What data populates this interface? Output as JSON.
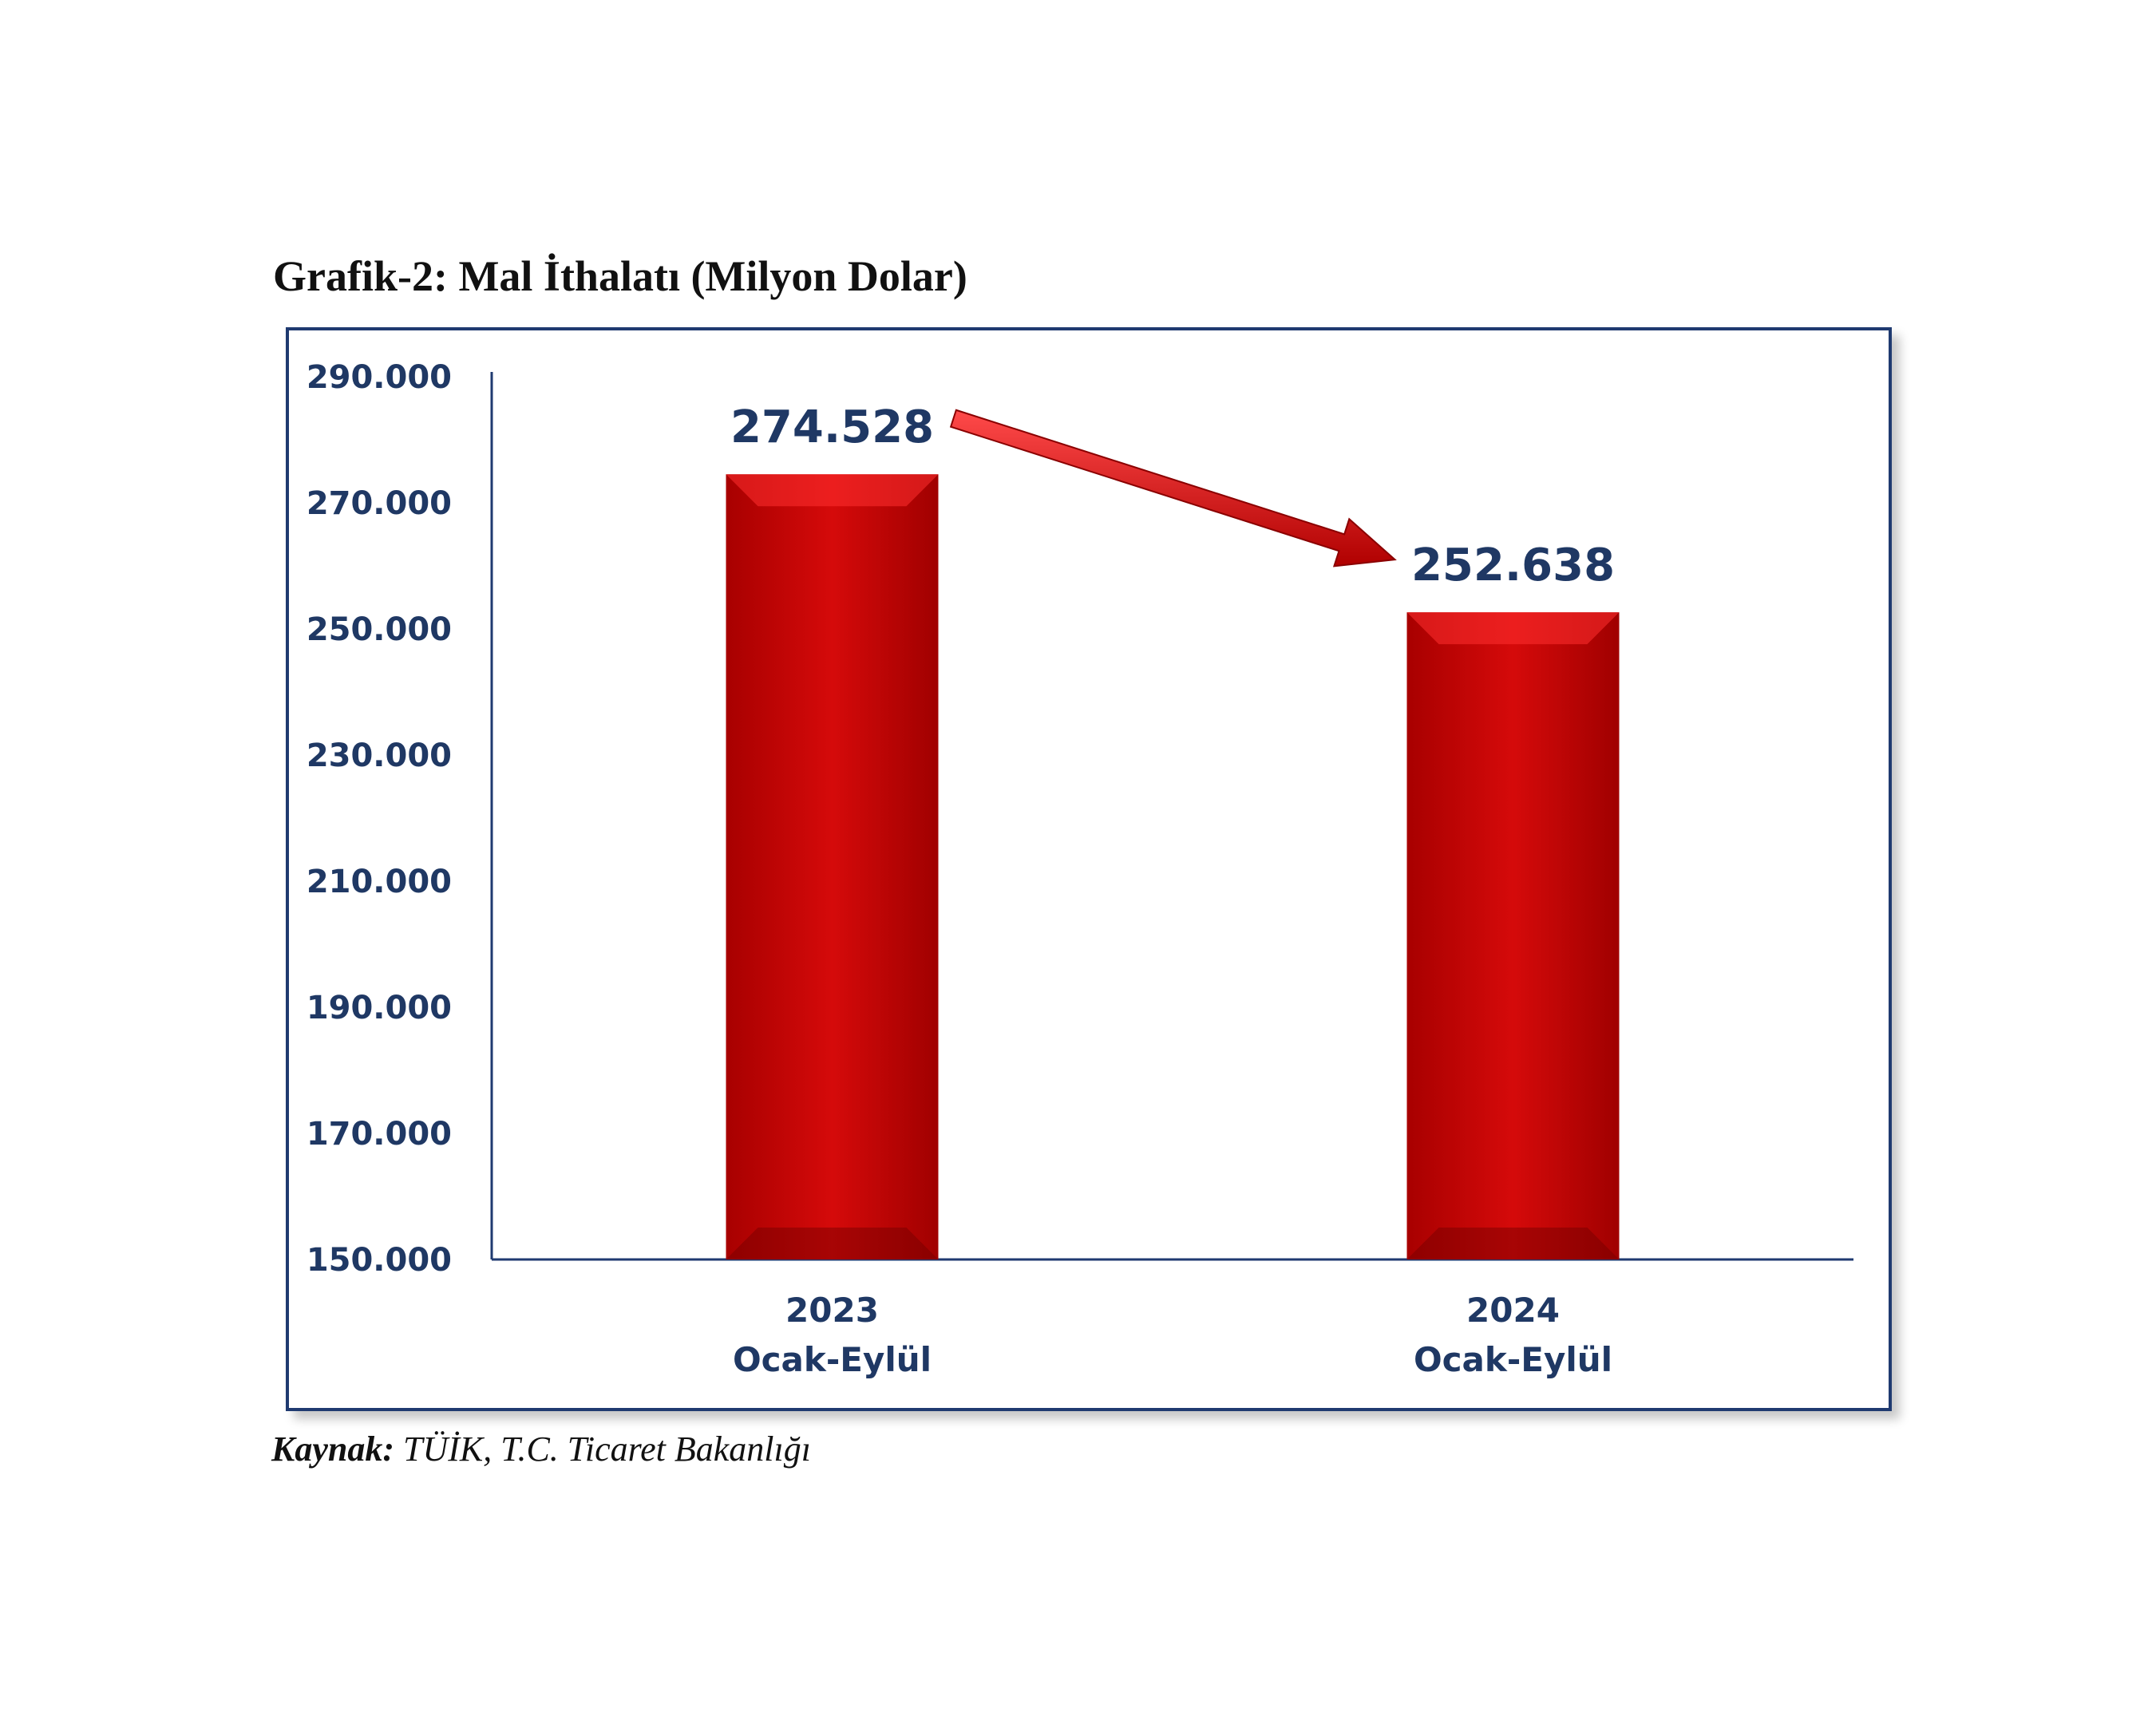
{
  "title": "Grafik-2: Mal İthalatı (Milyon Dolar)",
  "source": {
    "label": "Kaynak:",
    "text": " TÜİK, T.C. Ticaret Bakanlığı"
  },
  "colors": {
    "bar": "#c80000",
    "text": "#1f3864",
    "frame": "#1f3a70",
    "arrow": "#d40000"
  },
  "chart_data": {
    "type": "bar",
    "title": "Grafik-2: Mal İthalatı (Milyon Dolar)",
    "categories": [
      {
        "year": "2023",
        "period": "Ocak-Eylül"
      },
      {
        "year": "2024",
        "period": "Ocak-Eylül"
      }
    ],
    "values": [
      274528,
      252638
    ],
    "value_labels": [
      "274.528",
      "252.638"
    ],
    "ylim": [
      150000,
      290000
    ],
    "yticks": [
      150000,
      170000,
      190000,
      210000,
      230000,
      250000,
      270000,
      290000
    ],
    "ytick_labels": [
      "150.000",
      "170.000",
      "190.000",
      "210.000",
      "230.000",
      "250.000",
      "270.000",
      "290.000"
    ],
    "grid": false,
    "legend": "none",
    "annotation": "down-arrow-icon"
  }
}
